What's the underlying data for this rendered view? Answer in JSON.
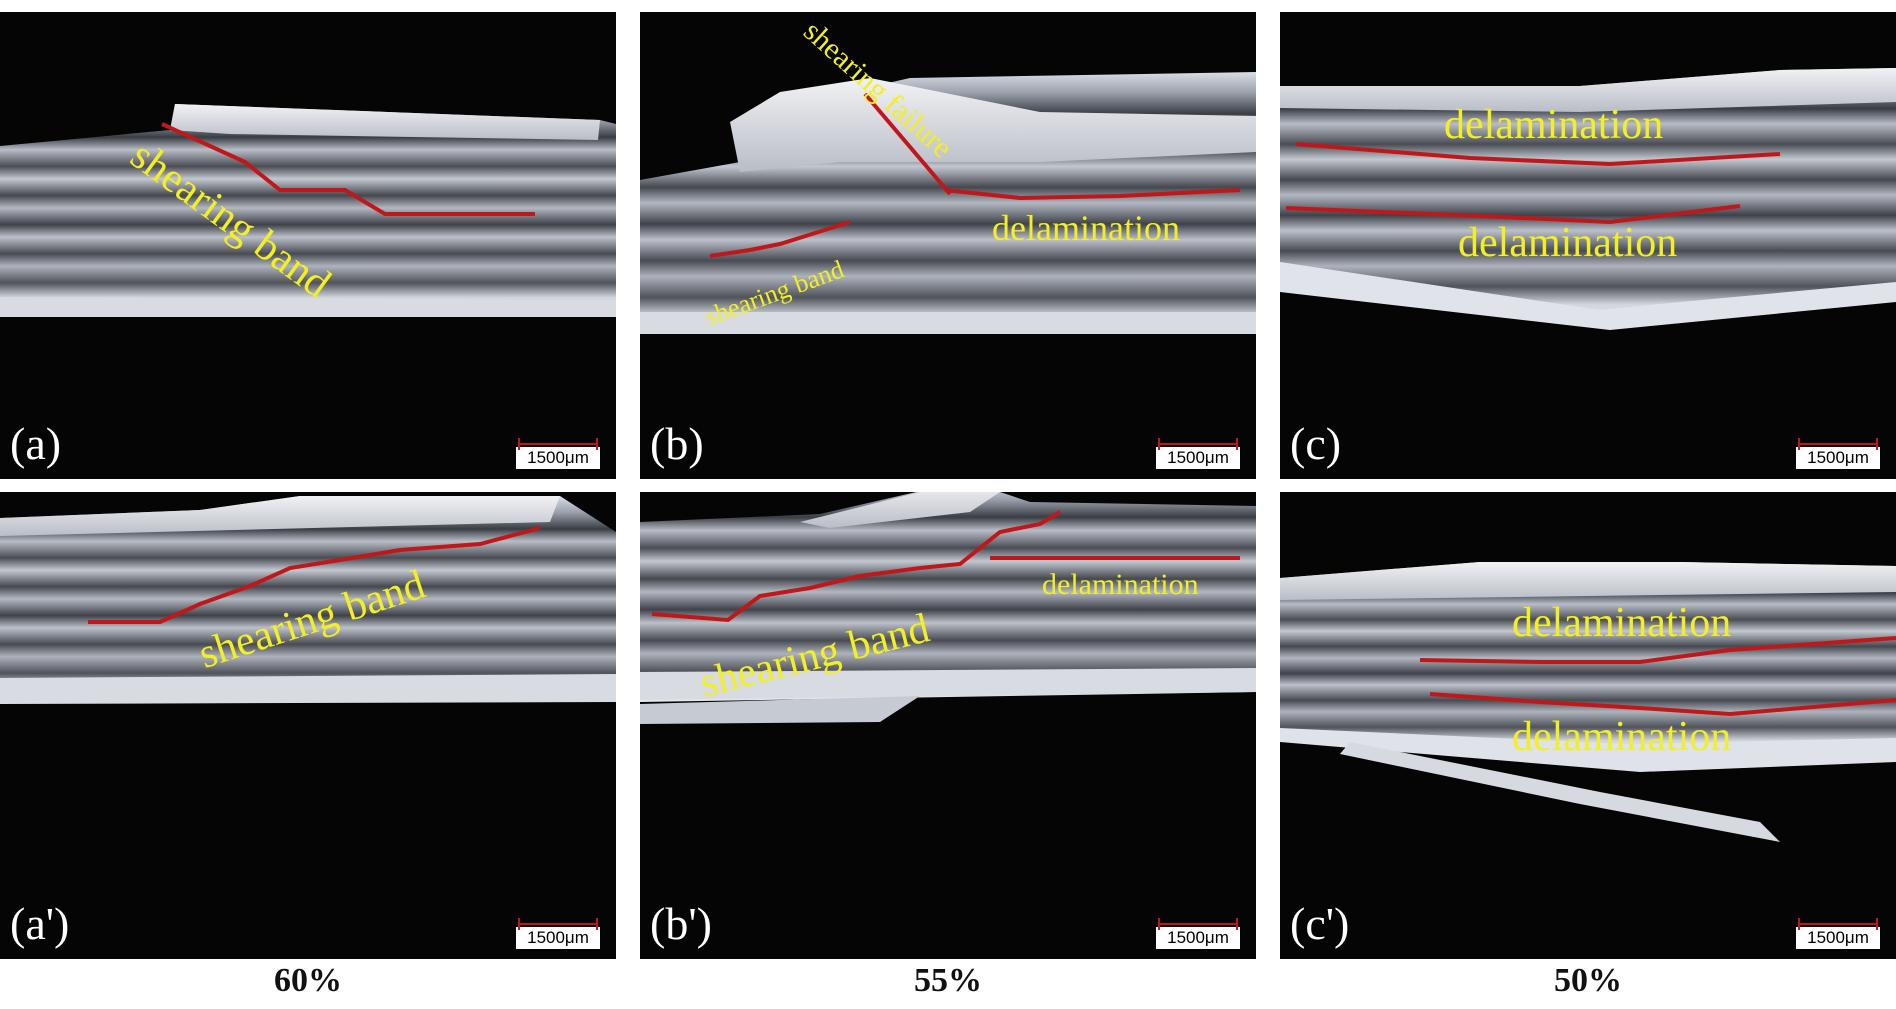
{
  "scale_bar_label": "1500μm",
  "panels": [
    {
      "label": "(a)",
      "annotations": [
        "shearing band"
      ]
    },
    {
      "label": "(b)",
      "annotations": [
        "shearing failure",
        "delamination",
        "shearing band"
      ]
    },
    {
      "label": "(c)",
      "annotations": [
        "delamination",
        "delamination"
      ]
    },
    {
      "label": "(a')",
      "annotations": [
        "shearing band"
      ]
    },
    {
      "label": "(b')",
      "annotations": [
        "shearing band",
        "delamination"
      ]
    },
    {
      "label": "(c')",
      "annotations": [
        "delamination",
        "delamination"
      ]
    }
  ],
  "column_captions": [
    "60%",
    "55%",
    "50%"
  ],
  "colors": {
    "annotation_text": "#f2ef24",
    "annotation_line": "#c0171b",
    "background": "#050505"
  }
}
